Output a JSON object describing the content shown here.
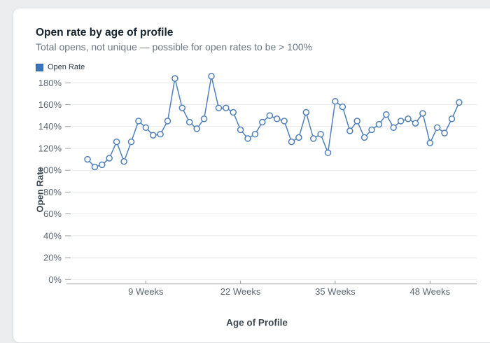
{
  "header": {
    "title": "Open rate by age of profile",
    "subtitle": "Total opens, not unique — possible for open rates to be > 100%"
  },
  "legend": {
    "items": [
      {
        "label": "Open Rate",
        "color": "#3b76bd"
      }
    ]
  },
  "colors": {
    "series_blue": "#4e7fba",
    "grid": "#e8e8e8",
    "axis_line": "#b0b0b0",
    "tick_label": "#5b6670"
  },
  "chart_data": {
    "type": "line",
    "title": "Open rate by age of profile",
    "xlabel": "Age of Profile",
    "ylabel": "Open Rate",
    "x_unit": "weeks",
    "x_start": 1,
    "x_step": 1,
    "series": [
      {
        "name": "Open Rate",
        "color": "#4e7fba",
        "marker": "open-circle",
        "values": [
          110,
          103,
          105,
          111,
          126,
          108,
          126,
          145,
          139,
          132,
          133,
          145,
          184,
          157,
          144,
          138,
          147,
          186,
          157,
          157,
          153,
          137,
          129,
          133,
          144,
          150,
          147,
          145,
          126,
          130,
          153,
          129,
          133,
          116,
          163,
          158,
          136,
          145,
          130,
          137,
          142,
          151,
          139,
          145,
          147,
          143,
          152,
          125,
          139,
          134,
          147,
          162
        ]
      }
    ],
    "yticks": [
      0,
      20,
      40,
      60,
      80,
      100,
      120,
      140,
      160,
      180
    ],
    "ytick_suffix": "%",
    "xticks": [
      {
        "value": 9,
        "label": "9 Weeks"
      },
      {
        "value": 22,
        "label": "22 Weeks"
      },
      {
        "value": 35,
        "label": "35 Weeks"
      },
      {
        "value": 48,
        "label": "48 Weeks"
      }
    ],
    "ylim": [
      0,
      190
    ],
    "grid": "horizontal",
    "legend_position": "top-left"
  }
}
